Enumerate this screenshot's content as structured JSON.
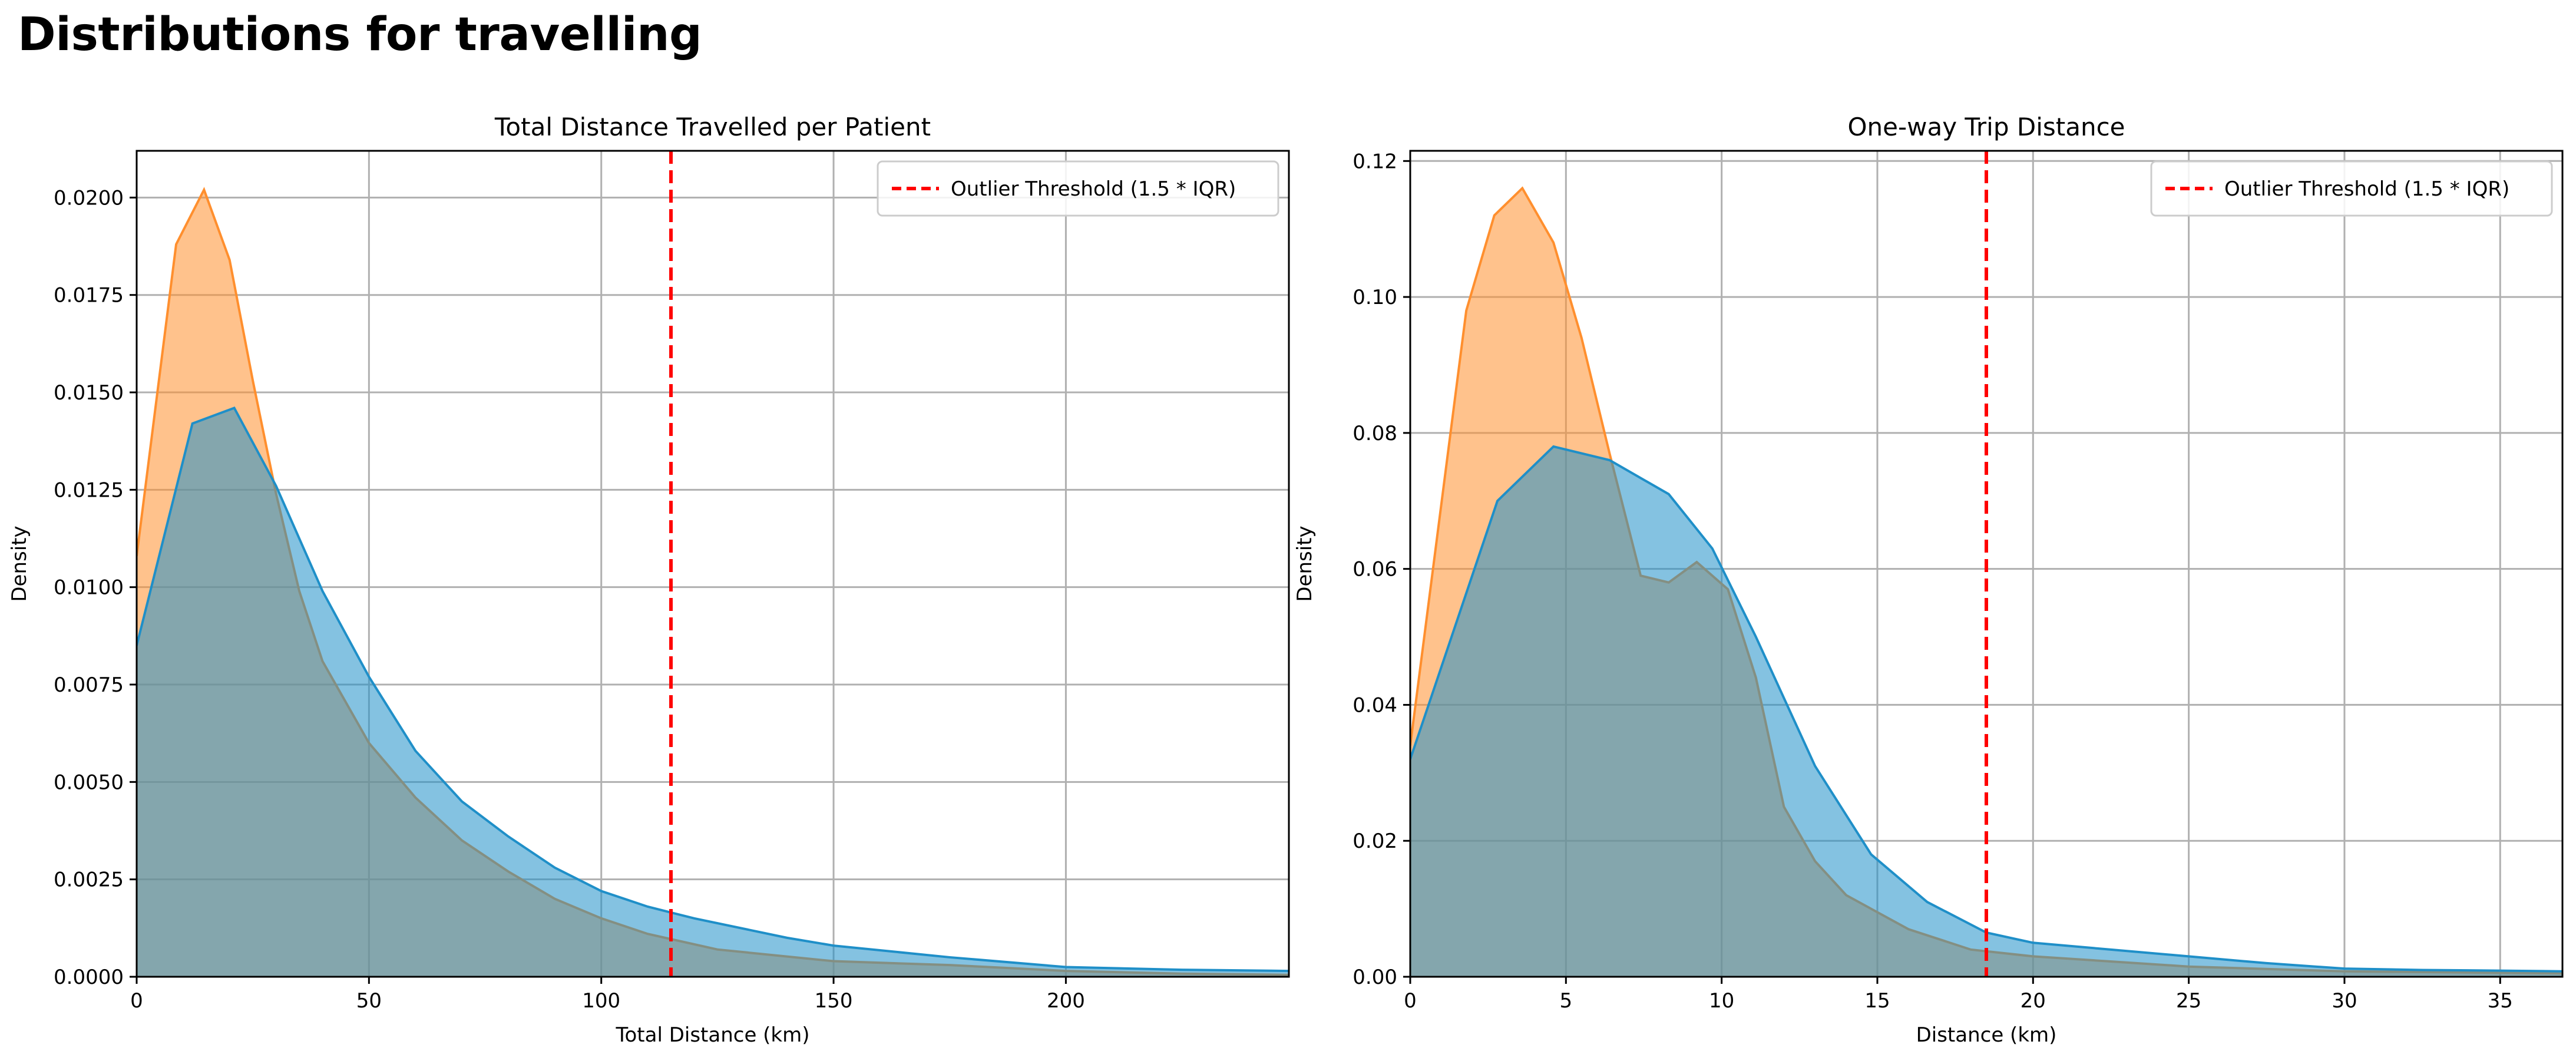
{
  "page": {
    "title": "Distributions for travelling"
  },
  "colors": {
    "orange": "#ff8f2e",
    "blue": "#1f8fc8",
    "threshold": "#ff0000"
  },
  "chart_data": [
    {
      "type": "area",
      "title": "Total Distance Travelled per Patient",
      "xlabel": "Total Distance (km)",
      "ylabel": "Density",
      "xlim": [
        0,
        248
      ],
      "ylim": [
        0,
        0.0212
      ],
      "xticks": [
        0,
        50,
        100,
        150,
        200
      ],
      "xtick_labels": [
        "0",
        "50",
        "100",
        "150",
        "200"
      ],
      "yticks": [
        0,
        0.0025,
        0.005,
        0.0075,
        0.01,
        0.0125,
        0.015,
        0.0175,
        0.02
      ],
      "ytick_labels": [
        "0.0000",
        "0.0025",
        "0.0050",
        "0.0075",
        "0.0100",
        "0.0125",
        "0.0150",
        "0.0175",
        "0.0200"
      ],
      "grid": true,
      "legend": {
        "position": "top-right",
        "label": "Outlier Threshold (1.5 * IQR)"
      },
      "threshold": 115,
      "series": [
        {
          "color": "orange",
          "x": [
            0,
            8.5,
            14.5,
            20,
            25,
            30,
            35,
            40,
            50,
            60,
            70,
            80,
            90,
            100,
            110,
            125,
            150,
            175,
            200,
            225,
            248
          ],
          "y": [
            0.0108,
            0.0188,
            0.0202,
            0.0184,
            0.0153,
            0.0124,
            0.0099,
            0.0081,
            0.006,
            0.0046,
            0.0035,
            0.0027,
            0.002,
            0.0015,
            0.0011,
            0.0007,
            0.0004,
            0.0003,
            0.00015,
            8e-05,
            5e-05
          ]
        },
        {
          "color": "blue",
          "x": [
            0,
            12,
            21,
            30,
            40,
            50,
            60,
            70,
            80,
            90,
            100,
            110,
            120,
            140,
            150,
            175,
            200,
            225,
            248
          ],
          "y": [
            0.0085,
            0.0142,
            0.0146,
            0.0126,
            0.0099,
            0.0077,
            0.0058,
            0.0045,
            0.0036,
            0.0028,
            0.0022,
            0.0018,
            0.0015,
            0.001,
            0.0008,
            0.0005,
            0.00025,
            0.00018,
            0.00015
          ]
        }
      ]
    },
    {
      "type": "area",
      "title": "One-way Trip Distance",
      "xlabel": "Distance (km)",
      "ylabel": "Density",
      "xlim": [
        0,
        37
      ],
      "ylim": [
        0,
        0.1215
      ],
      "xticks": [
        0,
        5,
        10,
        15,
        20,
        25,
        30,
        35
      ],
      "xtick_labels": [
        "0",
        "5",
        "10",
        "15",
        "20",
        "25",
        "30",
        "35"
      ],
      "yticks": [
        0,
        0.02,
        0.04,
        0.06,
        0.08,
        0.1,
        0.12
      ],
      "ytick_labels": [
        "0.00",
        "0.02",
        "0.04",
        "0.06",
        "0.08",
        "0.10",
        "0.12"
      ],
      "grid": true,
      "legend": {
        "position": "top-right",
        "label": "Outlier Threshold (1.5 * IQR)"
      },
      "threshold": 18.5,
      "series": [
        {
          "color": "orange",
          "x": [
            0,
            1.8,
            2.7,
            3.6,
            4.6,
            5.5,
            6.4,
            7.4,
            8.3,
            9.2,
            10.2,
            11.1,
            12.0,
            13.0,
            14.0,
            16,
            18,
            20,
            25,
            30,
            37
          ],
          "y": [
            0.034,
            0.098,
            0.112,
            0.116,
            0.108,
            0.094,
            0.077,
            0.059,
            0.058,
            0.061,
            0.057,
            0.044,
            0.025,
            0.017,
            0.012,
            0.007,
            0.004,
            0.003,
            0.0015,
            0.0008,
            0.0005
          ]
        },
        {
          "color": "blue",
          "x": [
            0,
            2.8,
            4.6,
            6.4,
            8.3,
            9.7,
            11.1,
            13.0,
            14.8,
            16.6,
            18.5,
            20.0,
            22.5,
            25.0,
            27.5,
            30,
            32.5,
            35,
            37
          ],
          "y": [
            0.032,
            0.07,
            0.078,
            0.076,
            0.071,
            0.063,
            0.05,
            0.031,
            0.018,
            0.011,
            0.0065,
            0.005,
            0.004,
            0.003,
            0.002,
            0.0012,
            0.001,
            0.0009,
            0.0008
          ]
        }
      ]
    }
  ]
}
